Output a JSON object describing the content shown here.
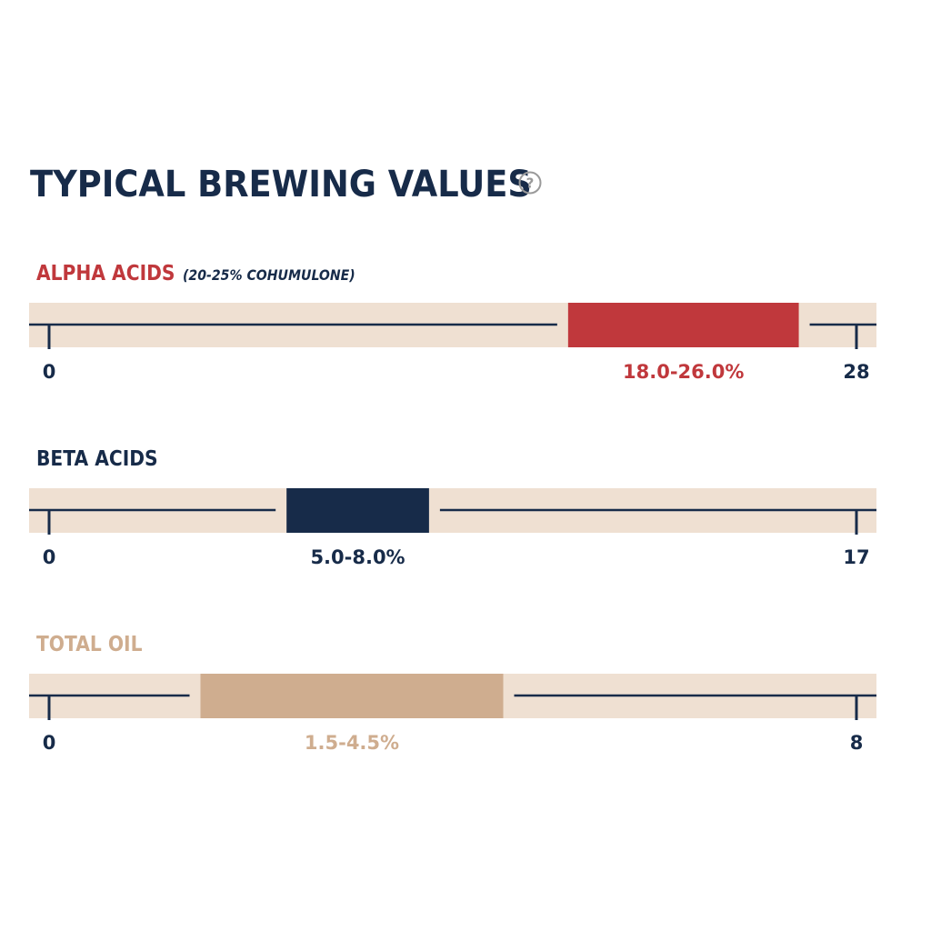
{
  "header": {
    "title": "TYPICAL BREWING VALUES",
    "help_icon": "question-circle-icon"
  },
  "colors": {
    "navy": "#172b49",
    "track": "#efe0d2",
    "alpha": "#c0383c",
    "beta": "#172b49",
    "oil": "#cfad8f",
    "help_icon": "#9a9a9a"
  },
  "chart_data": [
    {
      "type": "range-bar",
      "title": "ALPHA ACIDS",
      "note": "(20-25% COHUMULONE)",
      "min_label": "0",
      "max_label": "28",
      "xlim": [
        0,
        28
      ],
      "range": [
        18.0,
        26.0
      ],
      "range_label": "18.0-26.0%",
      "color": "#c0383c"
    },
    {
      "type": "range-bar",
      "title": "BETA ACIDS",
      "note": "",
      "min_label": "0",
      "max_label": "17",
      "xlim": [
        0,
        17
      ],
      "range": [
        5.0,
        8.0
      ],
      "range_label": "5.0-8.0%",
      "color": "#172b49"
    },
    {
      "type": "range-bar",
      "title": "TOTAL OIL",
      "note": "",
      "min_label": "0",
      "max_label": "8",
      "xlim": [
        0,
        8
      ],
      "range": [
        1.5,
        4.5
      ],
      "range_label": "1.5-4.5%",
      "color": "#cfad8f"
    }
  ]
}
